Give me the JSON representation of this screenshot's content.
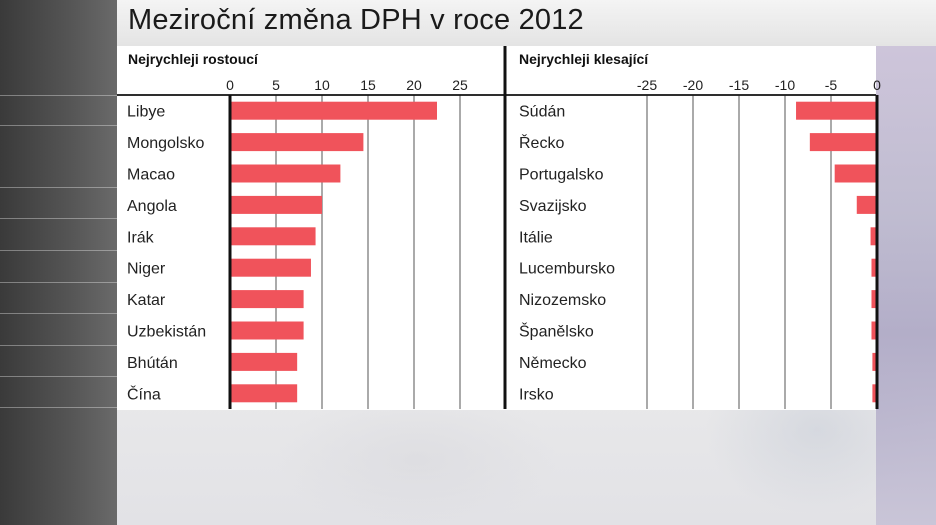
{
  "title": "Meziroční změna DPH v roce 2012",
  "colors": {
    "bar": "#f0535b",
    "axis": "#111111",
    "grid": "#555555"
  },
  "chart_data": [
    {
      "type": "bar",
      "orientation": "horizontal",
      "title": "Nejrychleji rostoucí",
      "categories": [
        "Libye",
        "Mongolsko",
        "Macao",
        "Angola",
        "Irák",
        "Niger",
        "Katar",
        "Uzbekistán",
        "Bhútán",
        "Čína"
      ],
      "values": [
        22.5,
        14.5,
        12,
        10,
        9.3,
        8.8,
        8,
        8,
        7.3,
        7.3
      ],
      "xlim": [
        0,
        30
      ],
      "ticks": [
        0,
        5,
        10,
        15,
        20,
        25
      ],
      "tick_labels": [
        "0",
        "5",
        "10",
        "15",
        "20",
        "25"
      ],
      "grid": true
    },
    {
      "type": "bar",
      "orientation": "horizontal",
      "title": "Nejrychleji klesající",
      "categories": [
        "Súdán",
        "Řecko",
        "Portugalsko",
        "Svazijsko",
        "Itálie",
        "Lucembursko",
        "Nizozemsko",
        "Španělsko",
        "Německo",
        "Irsko"
      ],
      "values": [
        -8.8,
        -7.3,
        -4.6,
        -2.2,
        -0.7,
        -0.6,
        -0.6,
        -0.6,
        -0.5,
        -0.5
      ],
      "xlim": [
        -30,
        0
      ],
      "ticks": [
        -25,
        -20,
        -15,
        -10,
        -5,
        0
      ],
      "tick_labels": [
        "-25",
        "-20",
        "-15",
        "-10",
        "-5",
        "0"
      ],
      "grid": true
    }
  ]
}
